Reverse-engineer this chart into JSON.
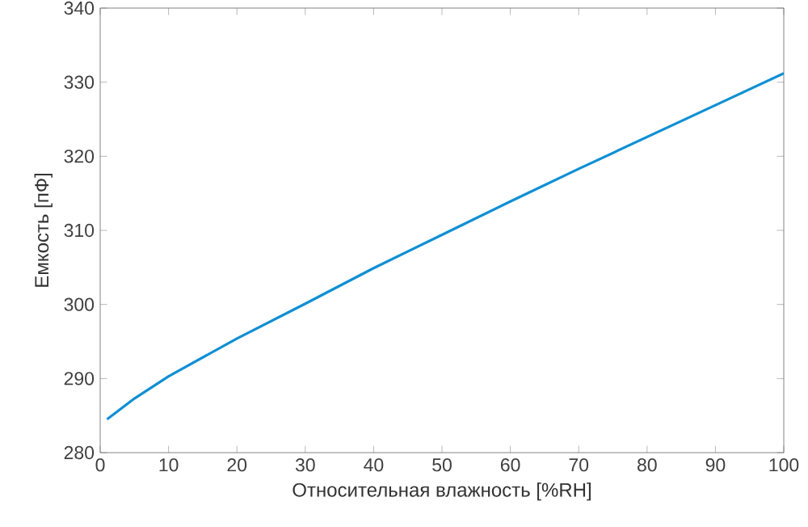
{
  "chart_data": {
    "type": "line",
    "xlabel": "Относительная влажность [%RH]",
    "ylabel": "Емкость [пФ]",
    "x": [
      1,
      5,
      10,
      20,
      30,
      40,
      50,
      60,
      70,
      80,
      90,
      100
    ],
    "series": [
      {
        "color": "#0f8fd4",
        "values": [
          284.5,
          287.3,
          290.3,
          295.4,
          300.1,
          304.9,
          309.4,
          313.9,
          318.3,
          322.6,
          326.9,
          331.2
        ]
      }
    ],
    "xlim": [
      0,
      100
    ],
    "ylim": [
      280,
      340
    ],
    "xticks": [
      0,
      10,
      20,
      30,
      40,
      50,
      60,
      70,
      80,
      90,
      100
    ],
    "yticks": [
      280,
      290,
      300,
      310,
      320,
      330,
      340
    ],
    "grid": false,
    "marker": "none",
    "line_style": "solid"
  }
}
